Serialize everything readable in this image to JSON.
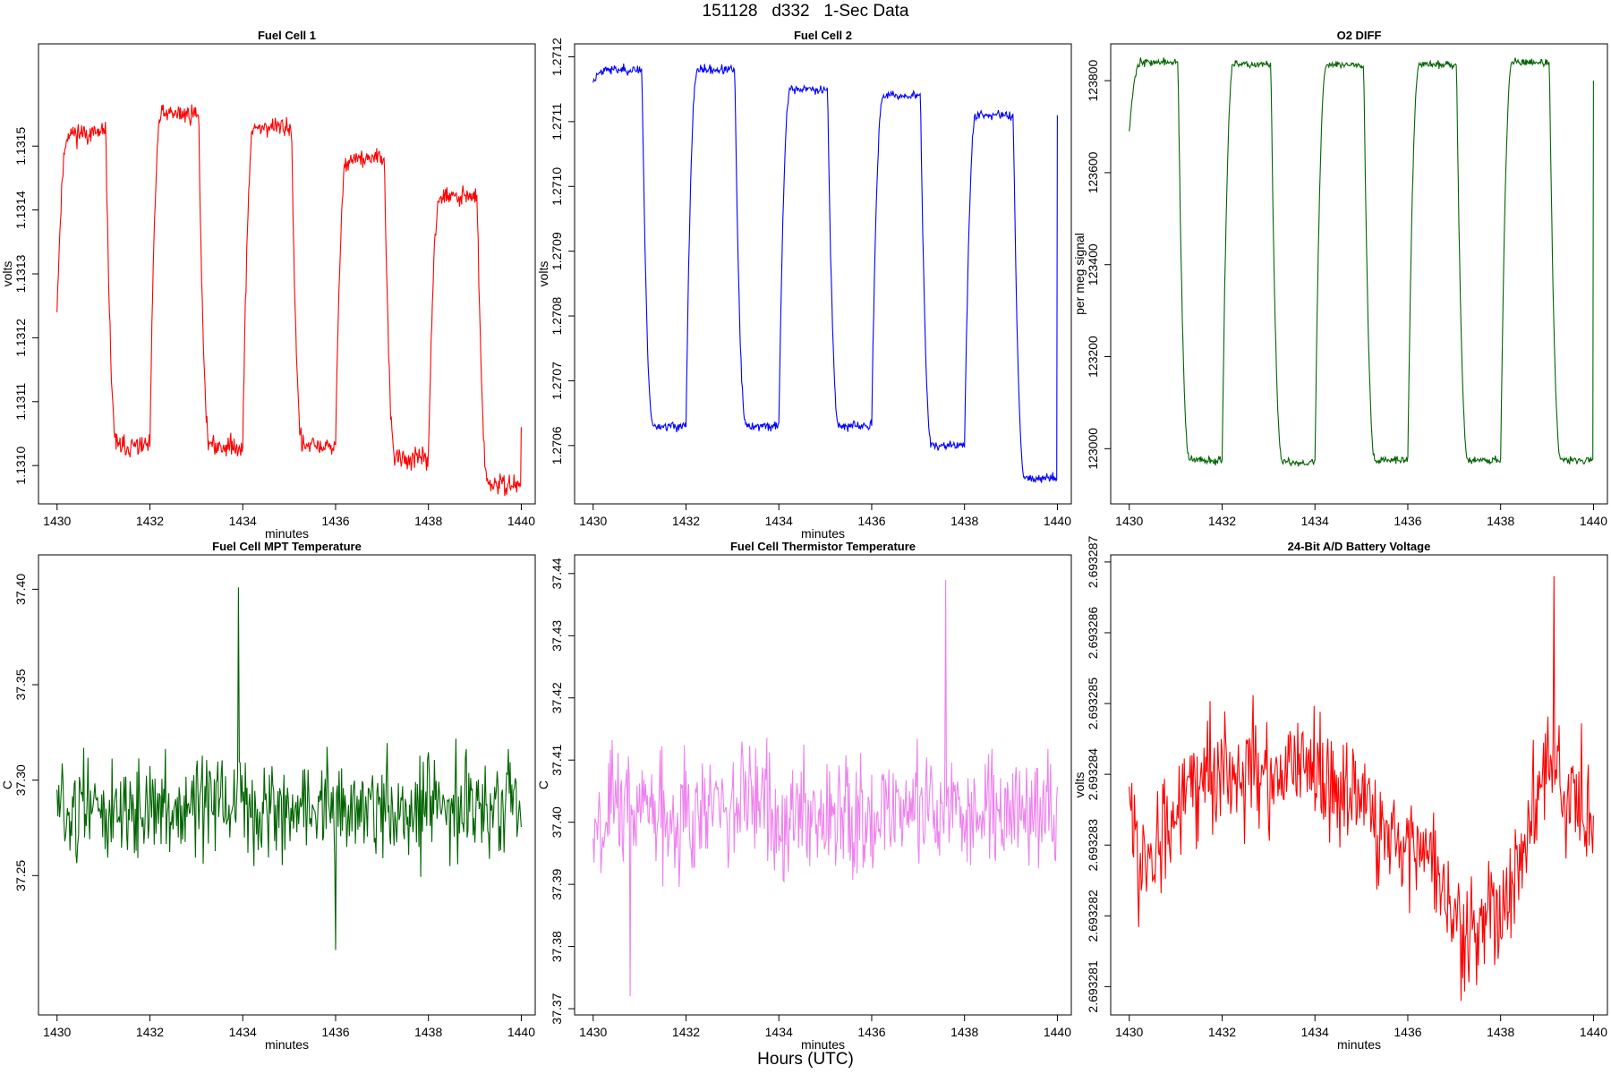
{
  "page": {
    "title": "151128   d332   1-Sec Data",
    "footer": "Hours (UTC)"
  },
  "chart_data": [
    {
      "type": "line",
      "title": "Fuel Cell 1",
      "xlabel": "minutes",
      "ylabel": "volts",
      "color": "#ff0000",
      "xlim": [
        1429.6,
        1440.3
      ],
      "ylim": [
        1.13094,
        1.13166
      ],
      "xticks": [
        1430,
        1432,
        1434,
        1436,
        1438,
        1440
      ],
      "yticks": [
        1.131,
        1.1311,
        1.1312,
        1.1313,
        1.1314,
        1.1315
      ],
      "ytick_labels": [
        "1.1310",
        "1.1311",
        "1.1312",
        "1.1313",
        "1.1314",
        "1.1315"
      ],
      "pattern": "square",
      "highs": [
        1.13152,
        1.13155,
        1.13153,
        1.13148,
        1.13142
      ],
      "lows": [
        1.13103,
        1.13103,
        1.13103,
        1.13101,
        1.13097
      ],
      "start": 1.13124,
      "end": 1.13106,
      "noise": 2.8e-05,
      "seed": 11
    },
    {
      "type": "line",
      "title": "Fuel Cell 2",
      "xlabel": "minutes",
      "ylabel": "volts",
      "color": "#0000ff",
      "xlim": [
        1429.6,
        1440.3
      ],
      "ylim": [
        1.27051,
        1.27122
      ],
      "xticks": [
        1430,
        1432,
        1434,
        1436,
        1438,
        1440
      ],
      "yticks": [
        1.2706,
        1.2707,
        1.2708,
        1.2709,
        1.271,
        1.2711,
        1.2712
      ],
      "ytick_labels": [
        "1.2706",
        "1.2707",
        "1.2708",
        "1.2709",
        "1.2710",
        "1.2711",
        "1.2712"
      ],
      "pattern": "square",
      "highs": [
        1.27118,
        1.27118,
        1.27115,
        1.27114,
        1.27111
      ],
      "lows": [
        1.27063,
        1.27063,
        1.27063,
        1.2706,
        1.27055
      ],
      "start": 1.27116,
      "end": 1.27111,
      "noise": 1.2e-05,
      "seed": 23
    },
    {
      "type": "line",
      "title": "O2 DIFF",
      "xlabel": "",
      "ylabel": "per meg signal",
      "color": "#006400",
      "xlim": [
        1429.6,
        1440.3
      ],
      "ylim": [
        122880,
        123880
      ],
      "xticks": [
        1430,
        1432,
        1434,
        1436,
        1438,
        1440
      ],
      "yticks": [
        123000,
        123200,
        123400,
        123600,
        123800
      ],
      "ytick_labels": [
        "123000",
        "123200",
        "123400",
        "123600",
        "123800"
      ],
      "pattern": "square",
      "highs": [
        123840,
        123835,
        123835,
        123835,
        123840
      ],
      "lows": [
        122975,
        122970,
        122975,
        122975,
        122975
      ],
      "start": 123690,
      "end": 123800,
      "noise": 14,
      "seed": 37
    },
    {
      "type": "line",
      "title": "Fuel Cell MPT Temperature",
      "xlabel": "minutes",
      "ylabel": "C",
      "color": "#006400",
      "xlim": [
        1429.6,
        1440.3
      ],
      "ylim": [
        37.177,
        37.418
      ],
      "xticks": [
        1430,
        1432,
        1434,
        1436,
        1438,
        1440
      ],
      "yticks": [
        37.25,
        37.3,
        37.35,
        37.4
      ],
      "ytick_labels": [
        "37.25",
        "37.30",
        "37.35",
        "37.40"
      ],
      "pattern": "noise",
      "mean": 37.285,
      "noise": 0.022,
      "min_value": 37.211,
      "max_value": 37.401,
      "max_at": 1433.9,
      "min_at": 1436.0,
      "seed": 51
    },
    {
      "type": "line",
      "title": "Fuel Cell Thermistor Temperature",
      "xlabel": "minutes",
      "ylabel": "C",
      "color": "#ee82ee",
      "xlim": [
        1429.6,
        1440.3
      ],
      "ylim": [
        37.369,
        37.443
      ],
      "xticks": [
        1430,
        1432,
        1434,
        1436,
        1438,
        1440
      ],
      "yticks": [
        37.37,
        37.38,
        37.39,
        37.4,
        37.41,
        37.42,
        37.43,
        37.44
      ],
      "ytick_labels": [
        "37.37",
        "37.38",
        "37.39",
        "37.40",
        "37.41",
        "37.42",
        "37.43",
        "37.44"
      ],
      "pattern": "noise",
      "mean": 37.402,
      "noise": 0.0085,
      "min_value": 37.372,
      "max_value": 37.439,
      "max_at": 1437.6,
      "min_at": 1430.8,
      "seed": 67
    },
    {
      "type": "line",
      "title": "24-Bit A/D Battery Voltage",
      "xlabel": "minutes",
      "ylabel": "volts",
      "color": "#ff0000",
      "xlim": [
        1429.6,
        1440.3
      ],
      "ylim": [
        2.6932806,
        2.6932871
      ],
      "xticks": [
        1430,
        1432,
        1434,
        1436,
        1438,
        1440
      ],
      "yticks": [
        2.693281,
        2.693282,
        2.693283,
        2.693284,
        2.693285,
        2.693286,
        2.693287
      ],
      "ytick_labels": [
        "2.693281",
        "2.693282",
        "2.693283",
        "2.693284",
        "2.693285",
        "2.693286",
        "2.693287"
      ],
      "pattern": "drift",
      "drift_x": [
        1430,
        1430.4,
        1431.2,
        1432.5,
        1434,
        1435.5,
        1436.5,
        1437.3,
        1438.2,
        1439,
        1439.5,
        1440
      ],
      "drift_y": [
        2.6932835,
        2.6932825,
        2.693284,
        2.693284,
        2.693284,
        2.6932833,
        2.6932828,
        2.6932818,
        2.6932822,
        2.6932842,
        2.6932838,
        2.6932832
      ],
      "noise": 7e-07,
      "min_value": 2.6932808,
      "max_value": 2.6932868,
      "max_at": 1439.15,
      "min_at": 1437.15,
      "seed": 83
    }
  ]
}
